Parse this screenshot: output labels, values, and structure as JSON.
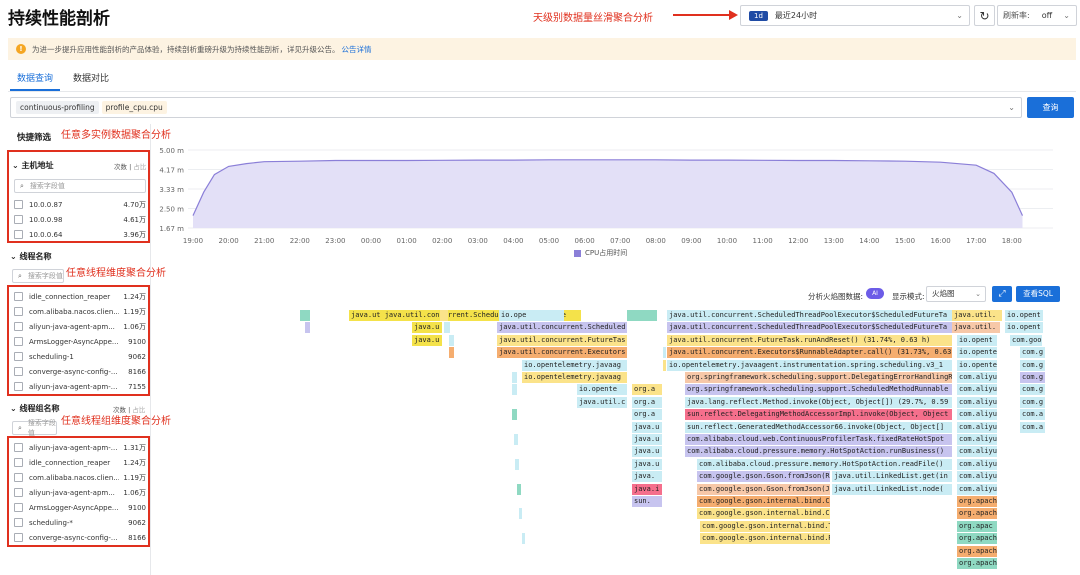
{
  "header": {
    "title": "持续性能剖析",
    "annotation": "天级别数据量丝滑聚合分析",
    "time_badge": "1d",
    "time_label": "最近24小时",
    "time_chevron": "⌄",
    "refresh_icon": "refresh-icon",
    "refresh_glyph": "↻",
    "rate_label": "刷新率:",
    "rate_value": "off"
  },
  "notice": {
    "icon": "!",
    "text": "为进一步提升应用性能剖析的产品体验，持续剖析重磅升级为持续性能剖析，详见升级公告。",
    "link": "公告详情"
  },
  "tabs": [
    {
      "label": "数据查询",
      "active": true
    },
    {
      "label": "数据对比",
      "active": false
    }
  ],
  "query": {
    "tags": [
      "continuous-profiling",
      "profile_cpu.cpu"
    ],
    "chevron": "⌄",
    "button": "查询"
  },
  "filters": {
    "title": "快捷筛选",
    "annotation_multi_instance": "任意多实例数据聚合分析",
    "annotation_thread": "任意线程维度聚合分析",
    "annotation_thread_group": "任意线程组维度聚合分析",
    "sections": [
      {
        "title": "主机地址",
        "tab_count": "次数",
        "tab_ratio": "占比",
        "search_placeholder": "搜索字段值",
        "items": [
          {
            "name": "10.0.0.87",
            "count": "4.70万"
          },
          {
            "name": "10.0.0.98",
            "count": "4.61万"
          },
          {
            "name": "10.0.0.64",
            "count": "3.96万"
          }
        ]
      },
      {
        "title": "线程名称",
        "tab_count": "次数",
        "tab_ratio": "占比",
        "search_placeholder": "搜索字段值",
        "items": [
          {
            "name": "idle_connection_reaper",
            "count": "1.24万"
          },
          {
            "name": "com.alibaba.nacos.clien...",
            "count": "1.19万"
          },
          {
            "name": "aliyun-java-agent-apm...",
            "count": "1.06万"
          },
          {
            "name": "ArmsLogger-AsyncAppe...",
            "count": "9100"
          },
          {
            "name": "scheduling-1",
            "count": "9062"
          },
          {
            "name": "converge-async-config-...",
            "count": "8166"
          },
          {
            "name": "aliyun-java-agent-apm-...",
            "count": "7155"
          }
        ]
      },
      {
        "title": "线程组名称",
        "tab_count": "次数",
        "tab_ratio": "占比",
        "search_placeholder": "搜索字段值",
        "items": [
          {
            "name": "aliyun-java-agent-apm-...",
            "count": "1.31万"
          },
          {
            "name": "idle_connection_reaper",
            "count": "1.24万"
          },
          {
            "name": "com.alibaba.nacos.clien...",
            "count": "1.19万"
          },
          {
            "name": "aliyun-java-agent-apm...",
            "count": "1.06万"
          },
          {
            "name": "ArmsLogger-AsyncAppe...",
            "count": "9100"
          },
          {
            "name": "scheduling-*",
            "count": "9062"
          },
          {
            "name": "converge-async-config-...",
            "count": "8166"
          }
        ]
      }
    ]
  },
  "chart_data": {
    "type": "area",
    "legend": "CPU占用时间",
    "series_color": "#8b7fd8",
    "y_ticks": [
      "5.00 m",
      "4.17 m",
      "3.33 m",
      "2.50 m",
      "1.67 m"
    ],
    "ylim": [
      1.67,
      5.0
    ],
    "x_ticks": [
      "19:00",
      "20:00",
      "21:00",
      "22:00",
      "23:00",
      "00:00",
      "01:00",
      "02:00",
      "03:00",
      "04:00",
      "05:00",
      "06:00",
      "07:00",
      "08:00",
      "09:00",
      "10:00",
      "11:00",
      "12:00",
      "13:00",
      "14:00",
      "15:00",
      "16:00",
      "17:00",
      "18:00"
    ],
    "series": [
      {
        "x_hours": [
          0,
          0.3,
          0.6,
          1,
          1.5,
          2,
          3,
          4,
          5,
          6,
          7,
          8,
          9,
          10,
          11,
          12,
          13,
          14,
          15,
          16,
          17,
          18,
          19,
          20,
          21,
          22,
          22.5,
          23,
          23.3
        ],
        "values": [
          2.2,
          3.2,
          3.95,
          4.3,
          4.42,
          4.5,
          4.52,
          4.55,
          4.55,
          4.55,
          4.56,
          4.57,
          4.57,
          4.58,
          4.58,
          4.58,
          4.58,
          4.57,
          4.57,
          4.56,
          4.55,
          4.55,
          4.54,
          4.52,
          4.48,
          4.35,
          4.0,
          3.2,
          2.2
        ]
      }
    ]
  },
  "flame": {
    "analyze_label": "分析火焰图数据:",
    "analyze_toggle": "AI",
    "mode_label": "显示模式:",
    "mode_value": "火焰图",
    "mode_chevron": "⌄",
    "expand_glyph": "⤢",
    "sql_button": "查看SQL",
    "frames": [
      {
        "l": 197,
        "t": 0,
        "w": 232,
        "row": 0,
        "c": "#f4e24a",
        "text": "java.ut java.util.concurrent.ScheduledThreadPoolExe"
      },
      {
        "l": 347,
        "t": 0,
        "w": 65,
        "row": 0,
        "c": "#c9ecf4",
        "text": "io.ope"
      },
      {
        "l": 475,
        "t": 0,
        "w": 30,
        "row": 0,
        "c": "#8fd9c2",
        "text": ""
      },
      {
        "l": 515,
        "t": 0,
        "w": 285,
        "row": 0,
        "c": "#c9ecf4",
        "text": "java.util.concurrent.ScheduledThreadPoolExecutor$ScheduledFutureTa"
      },
      {
        "l": 800,
        "t": 0,
        "w": 50,
        "row": 0,
        "c": "#fbe38a",
        "text": "java.util."
      },
      {
        "l": 853,
        "t": 0,
        "w": 38,
        "row": 0,
        "c": "#c9ecf4",
        "text": "io.opent"
      },
      {
        "l": 260,
        "t": 1,
        "w": 30,
        "row": 0,
        "c": "#f4e24a",
        "text": "java.u"
      },
      {
        "l": 345,
        "t": 1,
        "w": 130,
        "row": 0,
        "c": "#c7c4ef",
        "text": "java.util.concurrent.Scheduled"
      },
      {
        "l": 515,
        "t": 1,
        "w": 285,
        "row": 0,
        "c": "#c7c4ef",
        "text": "java.util.concurrent.ScheduledThreadPoolExecutor$ScheduledFutureTa"
      },
      {
        "l": 800,
        "t": 1,
        "w": 48,
        "row": 0,
        "c": "#f7c8a8",
        "text": "java.util."
      },
      {
        "l": 853,
        "t": 1,
        "w": 38,
        "row": 0,
        "c": "#c9ecf4",
        "text": "io.opent"
      },
      {
        "l": 260,
        "t": 2,
        "w": 30,
        "row": 0,
        "c": "#f4e24a",
        "text": "java.u"
      },
      {
        "l": 345,
        "t": 2,
        "w": 130,
        "row": 0,
        "c": "#fbe38a",
        "text": "java.util.concurrent.FutureTas"
      },
      {
        "l": 515,
        "t": 2,
        "w": 285,
        "row": 0,
        "c": "#fbe38a",
        "text": "java.util.concurrent.FutureTask.runAndReset() (31.74%, 0.63 h)"
      },
      {
        "l": 805,
        "t": 2,
        "w": 40,
        "row": 0,
        "c": "#c9ecf4",
        "text": "io.opent"
      },
      {
        "l": 858,
        "t": 2,
        "w": 32,
        "row": 0,
        "c": "#c9ecf4",
        "text": "com.goog"
      },
      {
        "l": 345,
        "t": 3,
        "w": 130,
        "row": 0,
        "c": "#f5ad6f",
        "text": "java.util.concurrent.Executors"
      },
      {
        "l": 515,
        "t": 3,
        "w": 285,
        "row": 0,
        "c": "#f5ad6f",
        "text": "java.util.concurrent.Executors$RunnableAdapter.call() (31.73%, 0.63"
      },
      {
        "l": 805,
        "t": 3,
        "w": 40,
        "row": 0,
        "c": "#c9ecf4",
        "text": "io.opente"
      },
      {
        "l": 868,
        "t": 3,
        "w": 25,
        "row": 0,
        "c": "#c9ecf4",
        "text": "com.g"
      },
      {
        "l": 370,
        "t": 4,
        "w": 105,
        "row": 0,
        "c": "#c9ecf4",
        "text": "io.opentelemetry.javaag"
      },
      {
        "l": 515,
        "t": 4,
        "w": 285,
        "row": 0,
        "c": "#c9ecf4",
        "text": "io.opentelemetry.javaagent.instrumentation.spring.scheduling.v3_1"
      },
      {
        "l": 805,
        "t": 4,
        "w": 40,
        "row": 0,
        "c": "#c9ecf4",
        "text": "io.opente"
      },
      {
        "l": 868,
        "t": 4,
        "w": 25,
        "row": 0,
        "c": "#c9ecf4",
        "text": "com.g"
      },
      {
        "l": 370,
        "t": 5,
        "w": 105,
        "row": 0,
        "c": "#fbe38a",
        "text": "io.opentelemetry.javaag"
      },
      {
        "l": 533,
        "t": 5,
        "w": 267,
        "row": 0,
        "c": "#f7c8a8",
        "text": "org.springframework.scheduling.support.DelegatingErrorHandlingRun"
      },
      {
        "l": 805,
        "t": 5,
        "w": 40,
        "row": 0,
        "c": "#c9ecf4",
        "text": "com.aliyu"
      },
      {
        "l": 868,
        "t": 5,
        "w": 25,
        "row": 0,
        "c": "#c7c4ef",
        "text": "com.g"
      },
      {
        "l": 425,
        "t": 6,
        "w": 50,
        "row": 0,
        "c": "#c9ecf4",
        "text": "io.opente"
      },
      {
        "l": 533,
        "t": 6,
        "w": 267,
        "row": 0,
        "c": "#c7c4ef",
        "text": "org.springframework.scheduling.support.ScheduledMethodRunnable"
      },
      {
        "l": 805,
        "t": 6,
        "w": 40,
        "row": 0,
        "c": "#c9ecf4",
        "text": "com.aliyu"
      },
      {
        "l": 868,
        "t": 6,
        "w": 25,
        "row": 0,
        "c": "#c9ecf4",
        "text": "com.g"
      },
      {
        "l": 425,
        "t": 7,
        "w": 50,
        "row": 0,
        "c": "#c9ecf4",
        "text": "java.util.c"
      },
      {
        "l": 533,
        "t": 7,
        "w": 267,
        "row": 0,
        "c": "#c9ecf4",
        "text": "java.lang.reflect.Method.invoke(Object, Object[]) (29.7%, 0.59"
      },
      {
        "l": 805,
        "t": 7,
        "w": 40,
        "row": 0,
        "c": "#c9ecf4",
        "text": "com.aliyu"
      },
      {
        "l": 868,
        "t": 7,
        "w": 25,
        "row": 0,
        "c": "#c9ecf4",
        "text": "com.g"
      },
      {
        "l": 533,
        "t": 8,
        "w": 267,
        "row": 0,
        "c": "#f56f8c",
        "text": "sun.reflect.DelegatingMethodAccessorImpl.invoke(Object, Object"
      },
      {
        "l": 805,
        "t": 8,
        "w": 40,
        "row": 0,
        "c": "#c9ecf4",
        "text": "com.aliyu"
      },
      {
        "l": 868,
        "t": 8,
        "w": 25,
        "row": 0,
        "c": "#c9ecf4",
        "text": "com.a"
      },
      {
        "l": 533,
        "t": 9,
        "w": 267,
        "row": 0,
        "c": "#c9ecf4",
        "text": "sun.reflect.GeneratedMethodAccessor66.invoke(Object, Object[]"
      },
      {
        "l": 805,
        "t": 9,
        "w": 40,
        "row": 0,
        "c": "#c9ecf4",
        "text": "com.aliyu"
      },
      {
        "l": 868,
        "t": 9,
        "w": 25,
        "row": 0,
        "c": "#c9ecf4",
        "text": "com.a"
      },
      {
        "l": 533,
        "t": 10,
        "w": 267,
        "row": 0,
        "c": "#c7c4ef",
        "text": "com.alibaba.cloud.web.ContinuousProfilerTask.fixedRateHotSpot"
      },
      {
        "l": 805,
        "t": 10,
        "w": 40,
        "row": 0,
        "c": "#c9ecf4",
        "text": "com.aliyu"
      },
      {
        "l": 533,
        "t": 11,
        "w": 267,
        "row": 0,
        "c": "#c7c4ef",
        "text": "com.alibaba.cloud.pressure.memory.HotSpotAction.runBusiness()"
      },
      {
        "l": 805,
        "t": 11,
        "w": 40,
        "row": 0,
        "c": "#c9ecf4",
        "text": "com.aliyu"
      },
      {
        "l": 545,
        "t": 12,
        "w": 255,
        "row": 0,
        "c": "#c9ecf4",
        "text": "com.alibaba.cloud.pressure.memory.HotSpotAction.readFile()"
      },
      {
        "l": 805,
        "t": 12,
        "w": 40,
        "row": 0,
        "c": "#c9ecf4",
        "text": "com.aliyu"
      },
      {
        "l": 545,
        "t": 13,
        "w": 133,
        "row": 0,
        "c": "#c7c4ef",
        "text": "com.google.gson.Gson.fromJson(R"
      },
      {
        "l": 680,
        "t": 13,
        "w": 120,
        "row": 0,
        "c": "#c9ecf4",
        "text": "java.util.LinkedList.get(in"
      },
      {
        "l": 805,
        "t": 13,
        "w": 40,
        "row": 0,
        "c": "#c9ecf4",
        "text": "com.aliyu"
      },
      {
        "l": 545,
        "t": 14,
        "w": 133,
        "row": 0,
        "c": "#f7c8a8",
        "text": "com.google.gson.Gson.fromJson(Js"
      },
      {
        "l": 680,
        "t": 14,
        "w": 120,
        "row": 0,
        "c": "#c9ecf4",
        "text": "java.util.LinkedList.node("
      },
      {
        "l": 805,
        "t": 14,
        "w": 40,
        "row": 0,
        "c": "#c9ecf4",
        "text": "com.aliyu"
      },
      {
        "l": 545,
        "t": 15,
        "w": 133,
        "row": 0,
        "c": "#f5ad6f",
        "text": "com.google.gson.internal.bind.Co"
      },
      {
        "l": 805,
        "t": 15,
        "w": 40,
        "row": 0,
        "c": "#f5ad6f",
        "text": "org.apach"
      },
      {
        "l": 545,
        "t": 16,
        "w": 133,
        "row": 0,
        "c": "#fbe38a",
        "text": "com.google.gson.internal.bind.Co"
      },
      {
        "l": 805,
        "t": 16,
        "w": 40,
        "row": 0,
        "c": "#f5ad6f",
        "text": "org.apach"
      },
      {
        "l": 548,
        "t": 17,
        "w": 130,
        "row": 0,
        "c": "#fbe38a",
        "text": "com.google.gson.internal.bind.T"
      },
      {
        "l": 805,
        "t": 17,
        "w": 40,
        "row": 0,
        "c": "#8fd9c2",
        "text": "org.apac"
      },
      {
        "l": 548,
        "t": 18,
        "w": 130,
        "row": 0,
        "c": "#fbe38a",
        "text": "com.google.gson.internal.bind.R"
      },
      {
        "l": 805,
        "t": 18,
        "w": 40,
        "row": 0,
        "c": "#8fd9c2",
        "text": "org.apach"
      },
      {
        "l": 805,
        "t": 19,
        "w": 40,
        "row": 0,
        "c": "#f5ad6f",
        "text": "org.apach"
      },
      {
        "l": 805,
        "t": 20,
        "w": 40,
        "row": 0,
        "c": "#8fd9c2",
        "text": "org.apach"
      },
      {
        "l": 480,
        "t": 6,
        "w": 30,
        "row": 0,
        "c": "#fbe38a",
        "text": "org.a"
      },
      {
        "l": 480,
        "t": 7,
        "w": 30,
        "row": 0,
        "c": "#c9ecf4",
        "text": "org.a"
      },
      {
        "l": 480,
        "t": 8,
        "w": 30,
        "row": 0,
        "c": "#c9ecf4",
        "text": "org.a"
      },
      {
        "l": 480,
        "t": 9,
        "w": 30,
        "row": 0,
        "c": "#c9ecf4",
        "text": "java.u"
      },
      {
        "l": 480,
        "t": 10,
        "w": 30,
        "row": 0,
        "c": "#c9ecf4",
        "text": "java.u"
      },
      {
        "l": 480,
        "t": 11,
        "w": 30,
        "row": 0,
        "c": "#c9ecf4",
        "text": "java.u"
      },
      {
        "l": 480,
        "t": 12,
        "w": 30,
        "row": 0,
        "c": "#c9ecf4",
        "text": "java.u"
      },
      {
        "l": 480,
        "t": 13,
        "w": 30,
        "row": 0,
        "c": "#c9ecf4",
        "text": "java."
      },
      {
        "l": 480,
        "t": 14,
        "w": 30,
        "row": 0,
        "c": "#f56f8c",
        "text": "java.i"
      },
      {
        "l": 480,
        "t": 15,
        "w": 30,
        "row": 0,
        "c": "#c7c4ef",
        "text": "sun."
      }
    ]
  }
}
